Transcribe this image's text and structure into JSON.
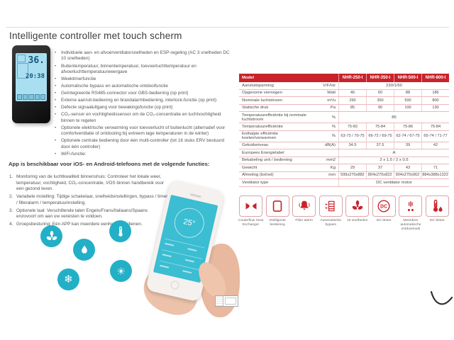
{
  "colors": {
    "brand_red": "#c9232a",
    "teal": "#23b0c6"
  },
  "page": {
    "title": "Intelligente controller met touch scherm"
  },
  "controller_device": {
    "screen_temp": "36.",
    "screen_time": "20:38"
  },
  "features": {
    "bullets": [
      "Individuele aan- en afvoerventilatorsnelheden en ESP-regeling (AC 3 snelheden DC 10 snelheden)",
      "Buitentemperatuur, binnentemperatuur, toevoerluchttemperatuur en afvoerluchttemperatuurweergave",
      "Weektimerfunctie",
      "Automatische bypass en automatische ontdooifunctie",
      "Geïntegreerde RS485-connector voor GBS-bediening (op print)",
      "Externe aan/uit-bediening en brandalarmbediening, interlock-functie (op print)",
      "Defecte signaaluitgang voor bewakingsfunctie (op print)",
      "CO₂-sensor en vochtigheidssensor om de CO₂-concentratie en luchtvochtigheid binnen te regelen",
      "Optionele elektrische verwarming voor toevoerlucht of buitenlucht (alternatief voor comfortventilatie of ontdooiing bij extreem lage temperaturen in de winter)",
      "Optionele centrale bediening door één multi-controller (tot 16 stuks ERV bestuurd door één controller)",
      "WiFi-functie:"
    ]
  },
  "app_section": {
    "intro": "App is beschikbaar voor iOS- en Android-telefoons met de volgende functies:",
    "items": [
      "Monitoring van de luchtkwaliteit binnenshuis: Controleer het lokale weer, temperatuur, vochtigheid, CO₂-concentratie, VOS binnen handbereik voor een gezond leven.",
      "Variabele instelling: Tijdige schakelaar, snelheidsinstellingen, bypass / timer / filteralarm / temperatuurinstelling.",
      "Optionele taal: Verschillende talen Engels/Frans/Italiaans/Spaans enzovoort om aan uw vereisten te voldoen.",
      "Groepsbesturing: Eén APP kan meerdere eenheden bedienen."
    ]
  },
  "app_icons": [
    "fan",
    "water-drop",
    "thermometer",
    "snowflake",
    "sun"
  ],
  "phone": {
    "temp": "25°"
  },
  "spec_table": {
    "header": {
      "model_label": "Model",
      "models": [
        "NHR-250-I",
        "NHR-350-I",
        "NHR-500-I",
        "NHR-800-I"
      ]
    },
    "rows": [
      {
        "label": "Aansluitspanning",
        "unit": "V/F/Hz",
        "span": "230/1/50"
      },
      {
        "label": "Opgenome vermogen",
        "unit": "Watt",
        "values": [
          "46",
          "60",
          "88",
          "186"
        ]
      },
      {
        "label": "Nominale luchtstroom",
        "unit": "m³/u",
        "values": [
          "250",
          "350",
          "500",
          "800"
        ]
      },
      {
        "label": "Statische druk",
        "unit": "Pa",
        "values": [
          "85",
          "90",
          "100",
          "130"
        ]
      },
      {
        "label": "Temperatuurefficiëntie bij nominale luchtstroom",
        "unit": "%",
        "span": "85"
      },
      {
        "label": "Temperatuurefficiëntie",
        "unit": "%",
        "values": [
          "75-82",
          "75-84",
          "75-86",
          "75-84"
        ]
      },
      {
        "label": "Enthalpie efficiëntie koelen/verwarmen",
        "unit": "%",
        "values": [
          "63-73 / 70-75",
          "66-72 / 69-75",
          "62-74 / 67-75",
          "65-74 / 71-77"
        ]
      },
      {
        "label": "Geluidsniveau",
        "unit": "dB(A)",
        "values": [
          "34.5",
          "37.5",
          "39",
          "42"
        ]
      },
      {
        "label": "Europees Energielabel",
        "unit": "",
        "span": "A"
      },
      {
        "label": "Bekabeling unit / bediening",
        "unit": "mm2",
        "span": "2 x 1.5 / 2 x 0.5"
      },
      {
        "label": "Gewicht",
        "unit": "Kg",
        "values": [
          "29",
          "37",
          "43",
          "71"
        ]
      },
      {
        "label": "Afmeting (bxhxd)",
        "unit": "mm",
        "values": [
          "599x270x882",
          "804x270x822",
          "904x270x962",
          "884x388x1322"
        ]
      },
      {
        "label": "Ventilator type",
        "unit": "",
        "span": "DC ventilator motor"
      }
    ]
  },
  "feature_icons": [
    {
      "icon": "heat-exchanger",
      "label": "Couterflow Heat Exchanger"
    },
    {
      "icon": "touch-panel",
      "label": "Intelligente bediening"
    },
    {
      "icon": "bell",
      "label": "Filter alarm"
    },
    {
      "icon": "bypass",
      "label": "Automatische bypass"
    },
    {
      "icon": "fan",
      "label": "10 snelheden"
    },
    {
      "icon": "dc-motor",
      "label": "DC Motor"
    },
    {
      "icon": "defrost",
      "label": "Meerdere automatische ontdooimodi"
    },
    {
      "icon": "thermometer-drop",
      "label": "DC Motor"
    }
  ]
}
